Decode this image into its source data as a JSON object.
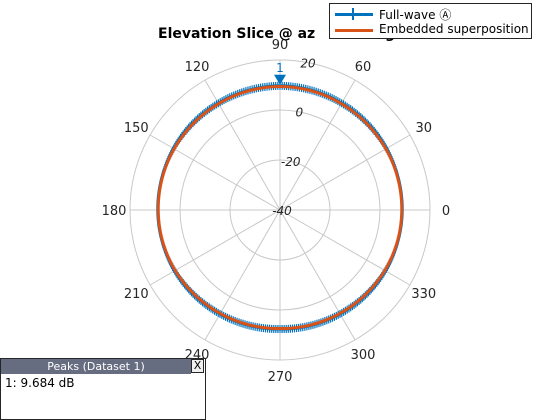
{
  "colors": {
    "fullwave": "#0072bd",
    "embedded": "#d95319",
    "grid": "#c8c8c8",
    "peaks_header_bg": "#676d80"
  },
  "chart_data": {
    "type": "polar-line",
    "title": "Elevation Slice @ az = ... deg",
    "title_visible": "Elevation Slice @ az ",
    "title_tail_visible": "g",
    "angle_unit": "deg",
    "angle_ticks": [
      "0",
      "30",
      "60",
      "90",
      "120",
      "150",
      "180",
      "210",
      "240",
      "270",
      "300",
      "330"
    ],
    "radial_ticks": [
      "-40",
      "-20",
      "0",
      "20"
    ],
    "rlim": [
      -40,
      20
    ],
    "grid": true,
    "legend_position": "top-right",
    "series": [
      {
        "name": "Full-wave Ⓐ",
        "marker": "vertical-tick",
        "theta_deg": [
          0,
          15,
          30,
          45,
          60,
          75,
          90,
          105,
          120,
          135,
          150,
          165,
          180,
          195,
          210,
          225,
          240,
          255,
          270,
          285,
          300,
          315,
          330,
          345,
          360
        ],
        "r_dB": [
          8.9,
          9.0,
          9.1,
          9.2,
          9.3,
          9.5,
          9.684,
          9.5,
          9.3,
          9.2,
          9.1,
          9.0,
          8.9,
          8.8,
          8.6,
          8.3,
          8.0,
          7.8,
          7.6,
          7.8,
          8.0,
          8.3,
          8.6,
          8.8,
          8.9
        ]
      },
      {
        "name": "Embedded superposition",
        "theta_deg": [
          0,
          15,
          30,
          45,
          60,
          75,
          90,
          105,
          120,
          135,
          150,
          165,
          180,
          195,
          210,
          225,
          240,
          255,
          270,
          285,
          300,
          315,
          330,
          345,
          360
        ],
        "r_dB": [
          8.7,
          8.8,
          8.9,
          9.0,
          9.1,
          9.3,
          9.4,
          9.3,
          9.1,
          9.0,
          8.9,
          8.8,
          8.7,
          8.6,
          8.4,
          8.1,
          7.8,
          7.6,
          7.4,
          7.6,
          7.8,
          8.1,
          8.4,
          8.6,
          8.7
        ]
      }
    ],
    "marker": {
      "label": "1",
      "theta_deg": 90
    }
  },
  "peaks": {
    "title": "Peaks (Dataset 1)",
    "close_label": "X",
    "rows": [
      "1: 9.684 dB"
    ]
  }
}
